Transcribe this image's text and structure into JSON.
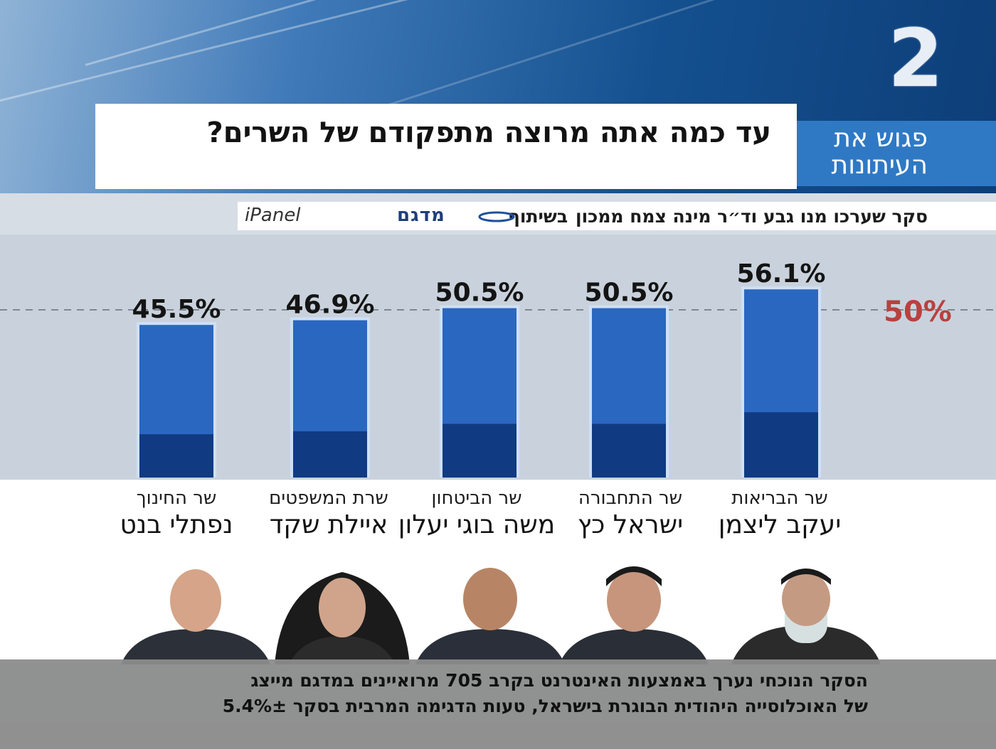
{
  "channel": {
    "logo_text": "2"
  },
  "header": {
    "title": "עד כמה אתה מרוצה מתפקודם של השרים?",
    "brand_line1": "פגוש את",
    "brand_line2": "העיתונות"
  },
  "survey": {
    "text": "סקר שערכו מנו גבע וד״ר מינה צמח ממכון",
    "with_word": "בשיתוף",
    "logo_a": "מדגם",
    "logo_b": "iPanel"
  },
  "chart_data": {
    "type": "bar",
    "categories": [
      "יעקב ליצמן",
      "ישראל כץ",
      "משה בוגי יעלון",
      "איילת שקד",
      "נפתלי בנט"
    ],
    "values": [
      56.1,
      50.5,
      50.5,
      46.9,
      45.5
    ],
    "value_labels": [
      "56.1%",
      "50.5%",
      "50.5%",
      "46.9%",
      "45.5%"
    ],
    "reference_line": {
      "value": 50,
      "label": "50%"
    },
    "ylim": [
      0,
      60
    ]
  },
  "ministers": [
    {
      "role": "שר הבריאות",
      "name": "יעקב ליצמן"
    },
    {
      "role": "שר התחבורה",
      "name": "ישראל כץ"
    },
    {
      "role": "שר הביטחון",
      "name": "משה בוגי יעלון"
    },
    {
      "role": "שרת המשפטים",
      "name": "איילת שקד"
    },
    {
      "role": "שר החינוך",
      "name": "נפתלי בנט"
    }
  ],
  "footer": {
    "line1": "הסקר הנוכחי נערך באמצעות האינטרנט בקרב 705 מרואיינים במדגם מייצג",
    "line2": "של האוכלוסייה היהודית הבוגרת בישראל, טעות הדגימה המרבית בסקר 5.4%±"
  },
  "colors": {
    "bar_top": "#2a67c0",
    "bar_bottom": "#103b82",
    "bar_edge": "#cfe0f5",
    "reference_label": "#b8413f"
  }
}
